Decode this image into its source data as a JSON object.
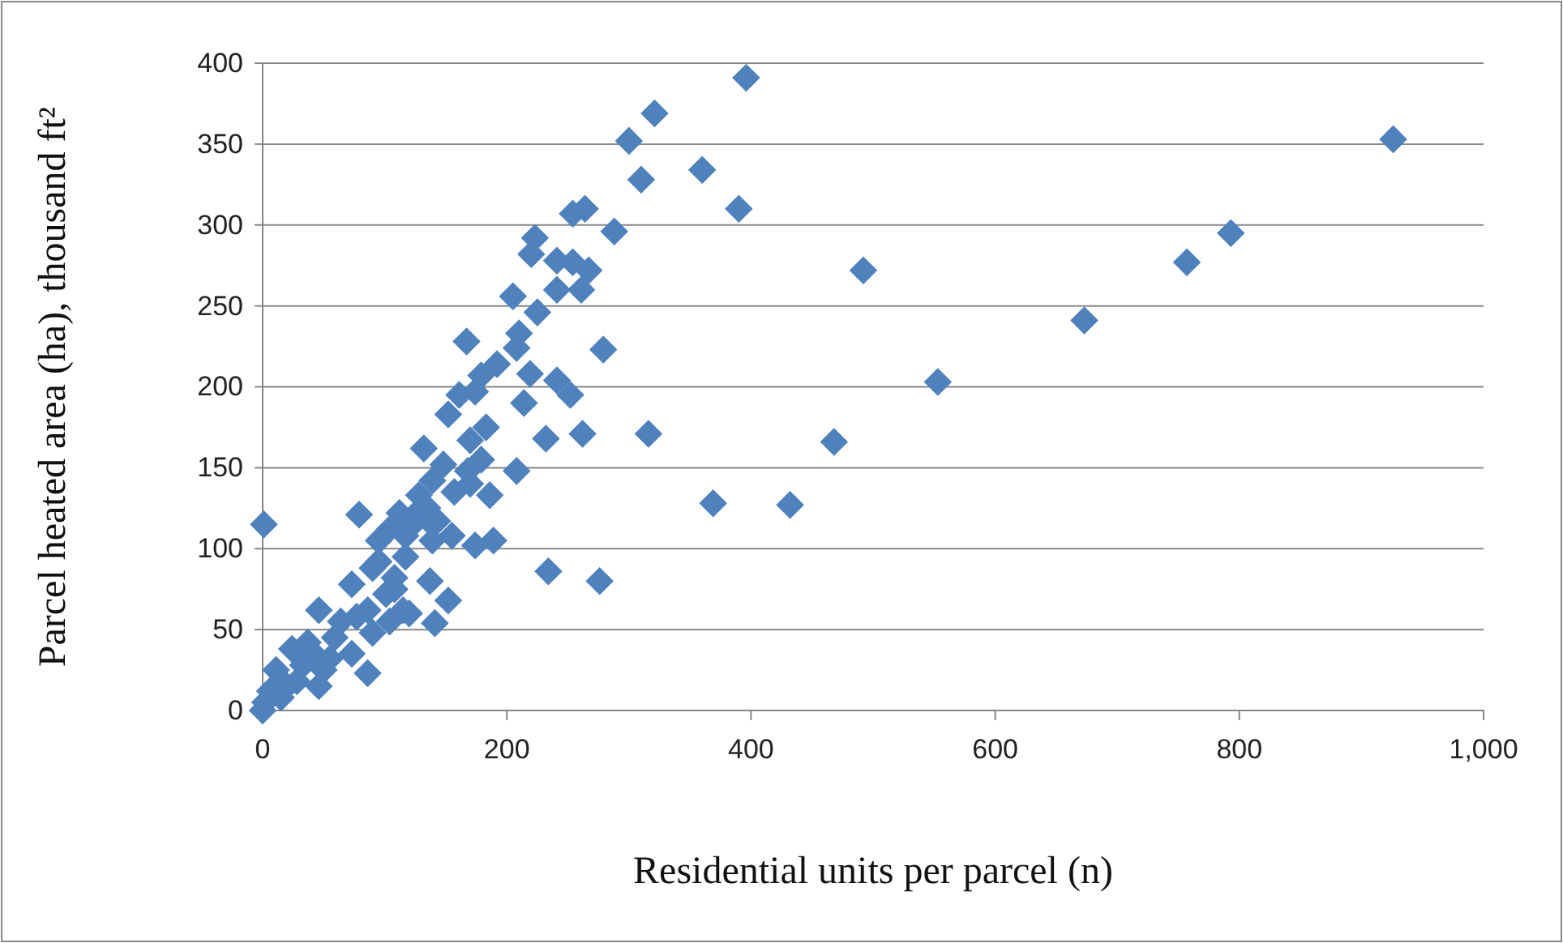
{
  "chart_data": {
    "type": "scatter",
    "xlabel": "Residential units per parcel (n)",
    "ylabel": "Parcel heated area (ha), thousand ft²",
    "xlim": [
      0,
      1000
    ],
    "xticks": [
      0,
      200,
      400,
      600,
      800,
      {
        "value": 1000,
        "label": "1,000"
      }
    ],
    "ylim": [
      0,
      400
    ],
    "yticks": [
      0,
      50,
      100,
      150,
      200,
      250,
      300,
      350,
      400
    ],
    "grid": "y",
    "marker": "diamond",
    "series": [
      {
        "color": "#4f81bd",
        "x": [
          396,
          321,
          300,
          310,
          360,
          390,
          254,
          264,
          288,
          223,
          220,
          241,
          254,
          267,
          241,
          261,
          205,
          225,
          167,
          210,
          208,
          279,
          192,
          179,
          219,
          241,
          252,
          161,
          174,
          214,
          152,
          232,
          262,
          316,
          183,
          170,
          132,
          179,
          168,
          208,
          148,
          139,
          170,
          186,
          128,
          369,
          112,
          79,
          1,
          143,
          155,
          174,
          189,
          104,
          95,
          117,
          90,
          234,
          276,
          137,
          152,
          73,
          101,
          120,
          141,
          46,
          86,
          64,
          37,
          24,
          55,
          11,
          28,
          2,
          0,
          15,
          46,
          73,
          90,
          104,
          86,
          108,
          95,
          117,
          108,
          77,
          59,
          50,
          33,
          20,
          6,
          42,
          126,
          135,
          123,
          139,
          115,
          139,
          157,
          492,
          926,
          793,
          757,
          673,
          553,
          468,
          432
        ],
        "values": [
          391,
          369,
          352,
          328,
          334,
          310,
          307,
          310,
          296,
          292,
          282,
          278,
          277,
          272,
          260,
          260,
          256,
          246,
          228,
          233,
          224,
          223,
          214,
          207,
          208,
          204,
          195,
          195,
          197,
          190,
          183,
          168,
          171,
          171,
          175,
          167,
          162,
          155,
          148,
          148,
          152,
          142,
          140,
          133,
          133,
          128,
          122,
          121,
          115,
          117,
          108,
          102,
          105,
          112,
          105,
          95,
          88,
          86,
          80,
          80,
          68,
          78,
          72,
          60,
          54,
          62,
          23,
          55,
          42,
          38,
          32,
          25,
          18,
          5,
          0,
          8,
          15,
          35,
          48,
          55,
          62,
          75,
          92,
          108,
          82,
          58,
          45,
          25,
          28,
          15,
          12,
          35,
          122,
          125,
          115,
          105,
          62,
          115,
          135,
          272,
          353,
          295,
          277,
          241,
          203,
          166,
          127
        ]
      }
    ]
  }
}
